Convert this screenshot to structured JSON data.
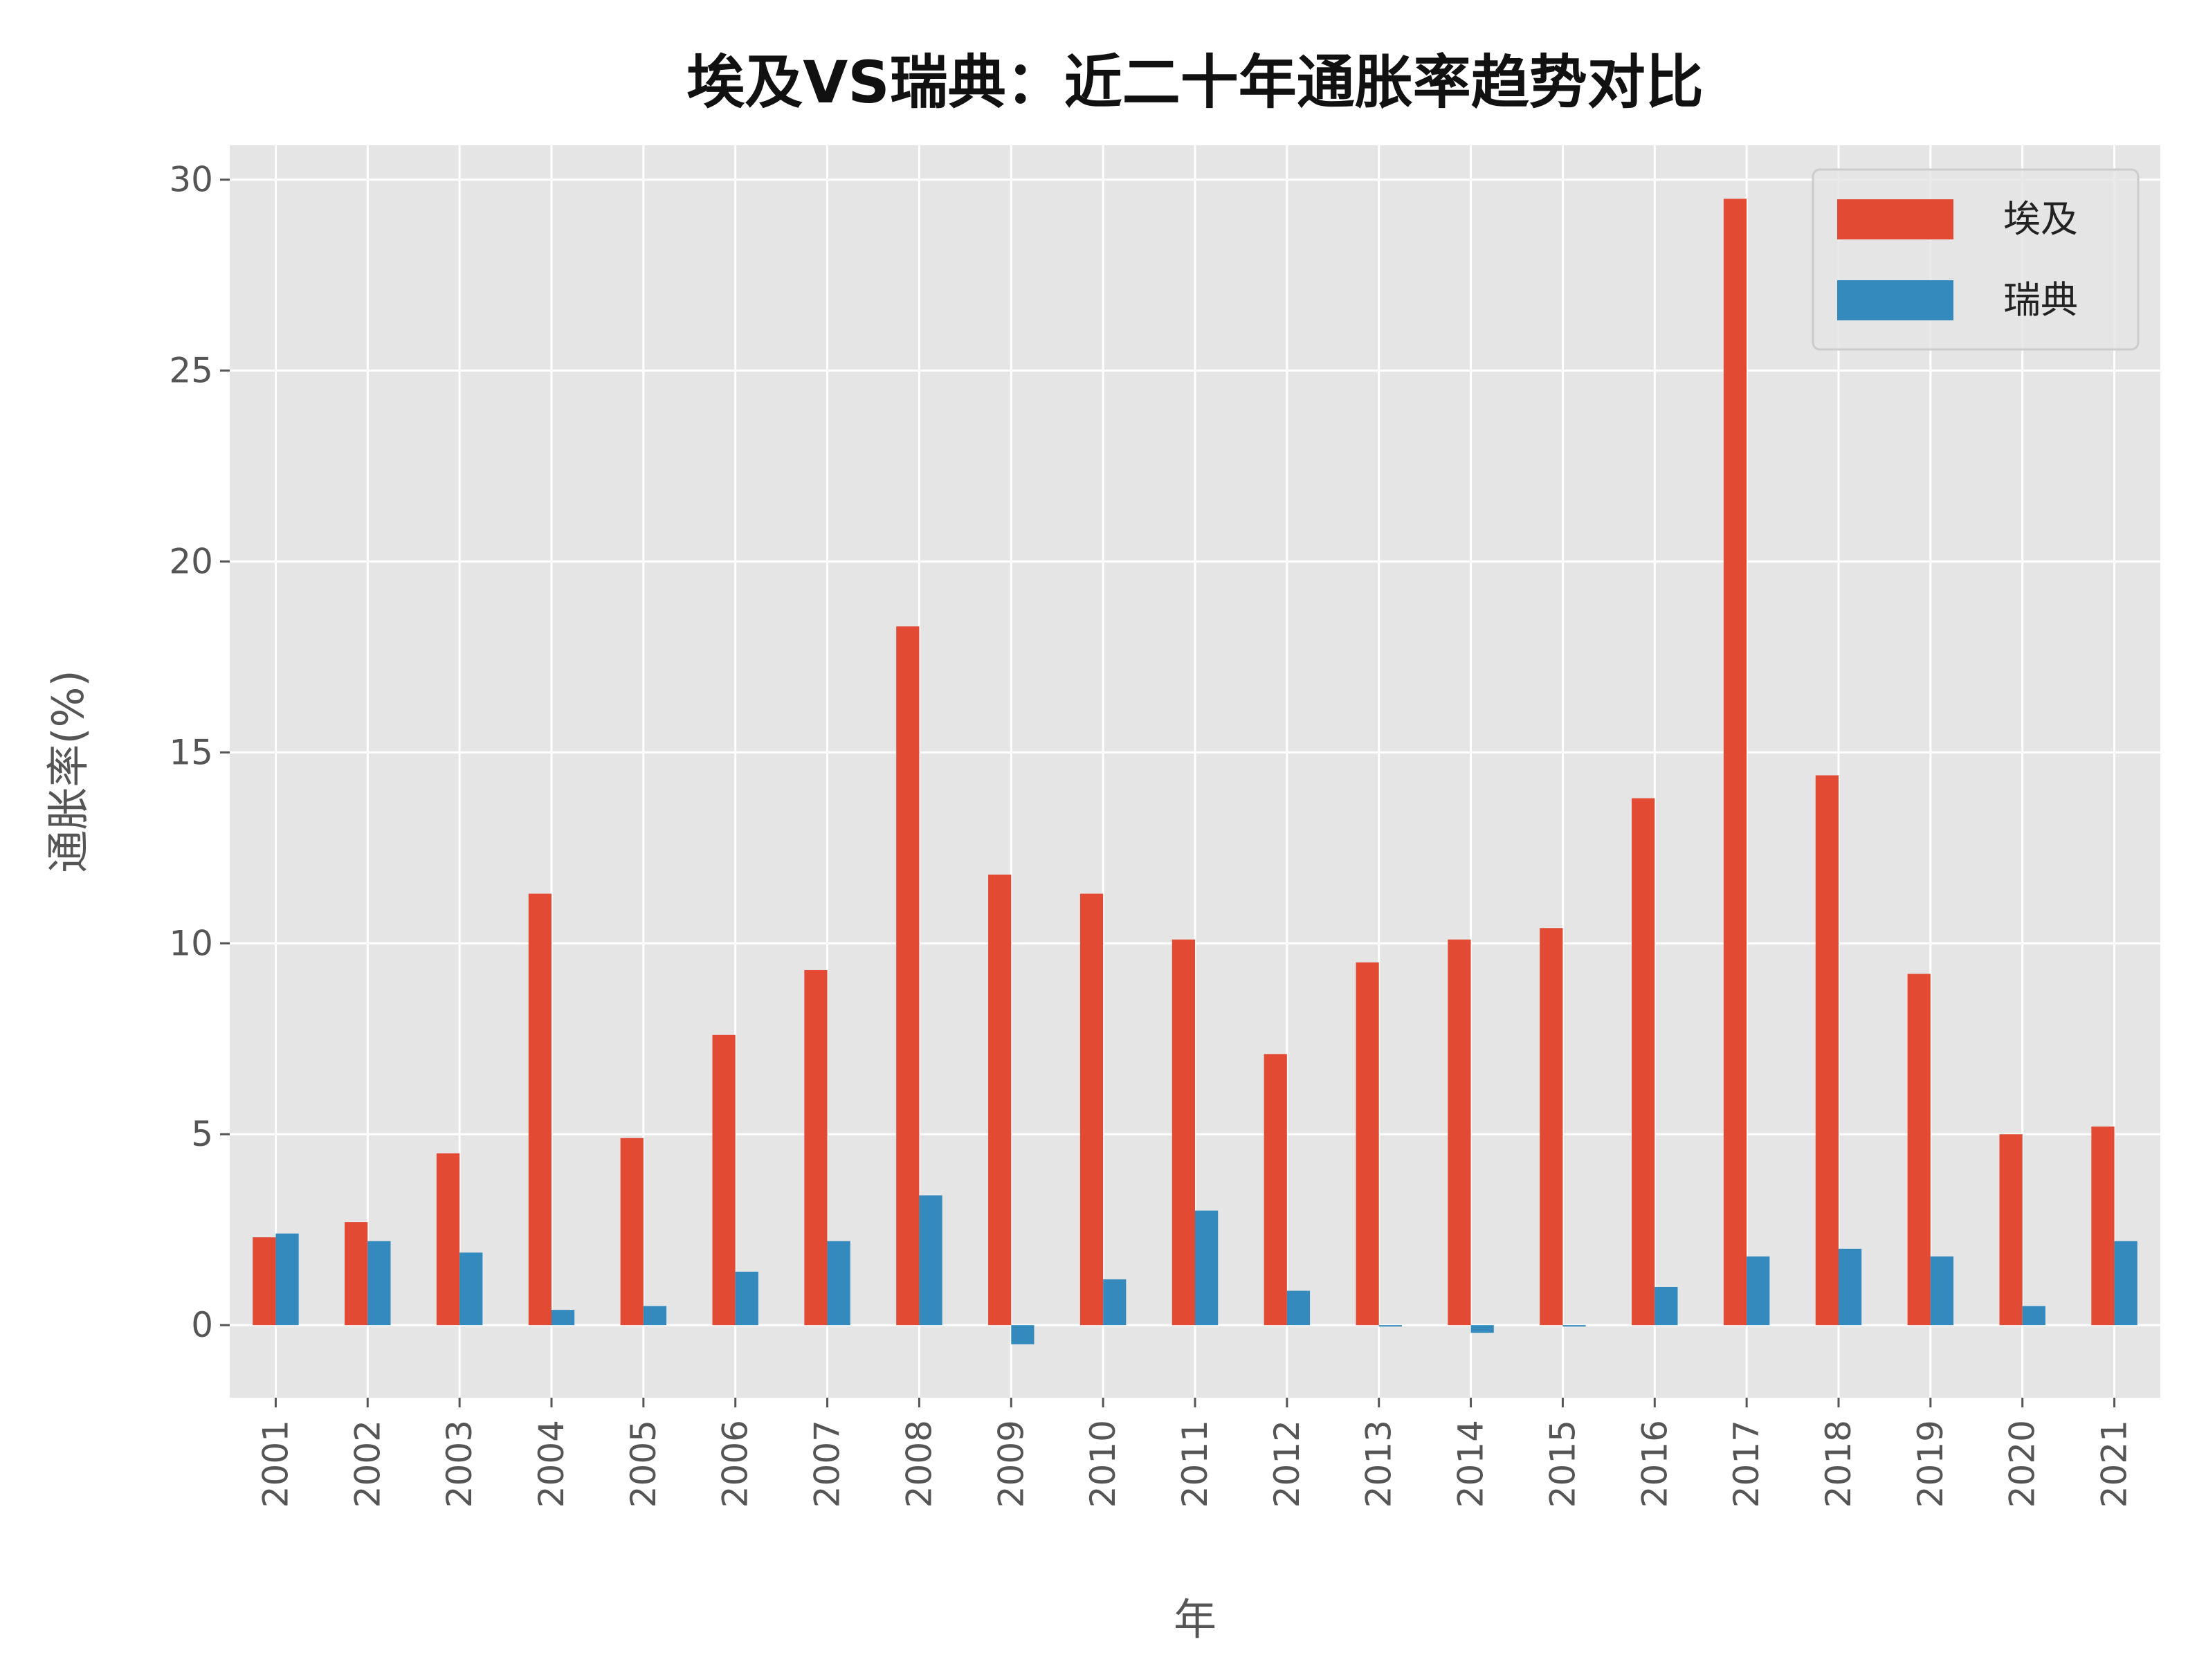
{
  "chart_data": {
    "type": "bar",
    "title": "埃及VS瑞典：近二十年通胀率趋势对比",
    "xlabel": "年",
    "ylabel": "通胀率(%)",
    "ylim": [
      -1.9,
      30.9
    ],
    "yticks": [
      0,
      5,
      10,
      15,
      20,
      25,
      30
    ],
    "grid": true,
    "legend_position": "top-right",
    "categories": [
      "2001",
      "2002",
      "2003",
      "2004",
      "2005",
      "2006",
      "2007",
      "2008",
      "2009",
      "2010",
      "2011",
      "2012",
      "2013",
      "2014",
      "2015",
      "2016",
      "2017",
      "2018",
      "2019",
      "2020",
      "2021"
    ],
    "series": [
      {
        "name": "埃及",
        "color": "#E24A33",
        "values": [
          2.3,
          2.7,
          4.5,
          11.3,
          4.9,
          7.6,
          9.3,
          18.3,
          11.8,
          11.3,
          10.1,
          7.1,
          9.5,
          10.1,
          10.4,
          13.8,
          29.5,
          14.4,
          9.2,
          5.0,
          5.2
        ]
      },
      {
        "name": "瑞典",
        "color": "#348ABD",
        "values": [
          2.4,
          2.2,
          1.9,
          0.4,
          0.5,
          1.4,
          2.2,
          3.4,
          -0.5,
          1.2,
          3.0,
          0.9,
          0.0,
          -0.2,
          0.0,
          1.0,
          1.8,
          2.0,
          1.8,
          0.5,
          2.2
        ]
      }
    ]
  }
}
